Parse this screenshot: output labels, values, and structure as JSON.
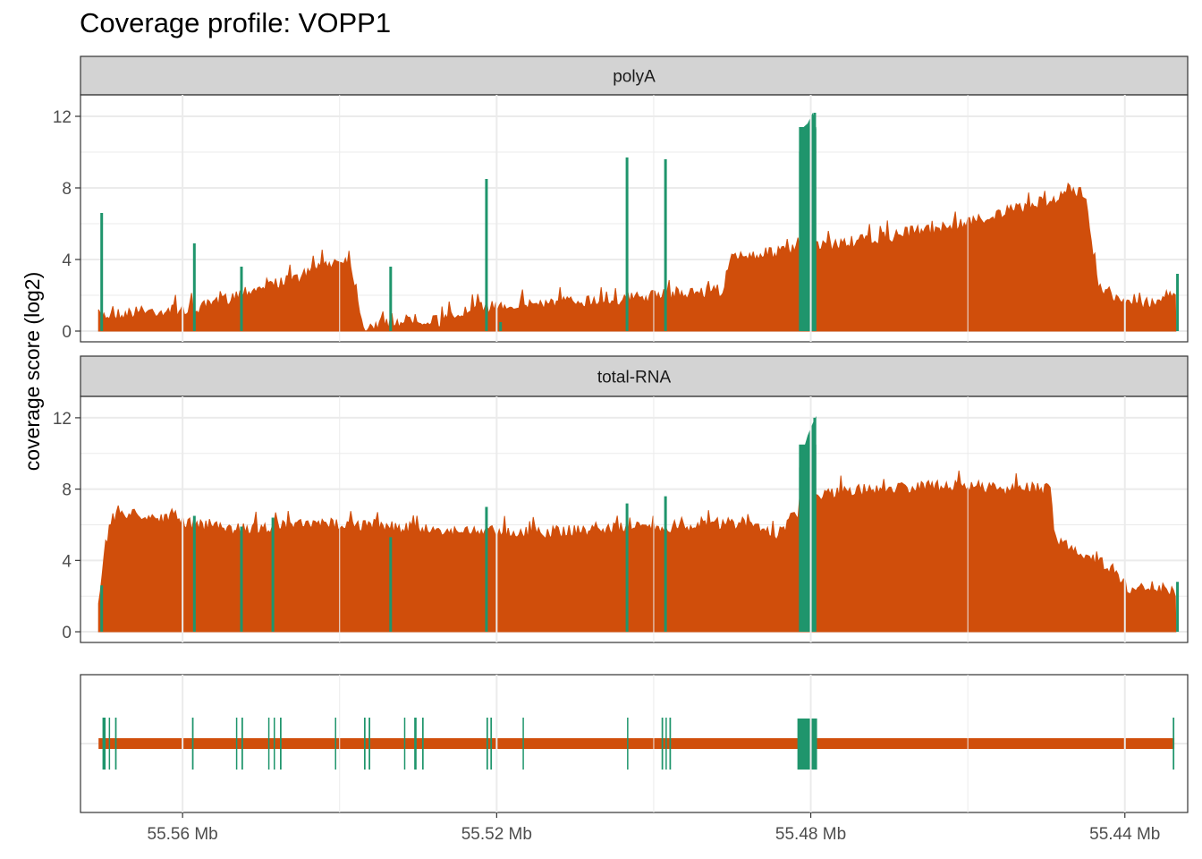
{
  "chart_data": {
    "type": "area",
    "title": "Coverage profile: VOPP1",
    "ylabel": "coverage score (log2)",
    "xlabel": "",
    "x_axis": {
      "reversed": true,
      "unit": "Mb",
      "xlim": [
        55.573,
        55.432
      ],
      "ticks": [
        55.56,
        55.52,
        55.48,
        55.44
      ],
      "tick_labels": [
        "55.56 Mb",
        "55.52 Mb",
        "55.48 Mb",
        "55.44 Mb"
      ]
    },
    "y_axis": {
      "ylim": [
        -0.6,
        13.2
      ],
      "ticks": [
        0,
        4,
        8,
        12
      ],
      "tick_labels": [
        "0",
        "4",
        "8",
        "12"
      ]
    },
    "grid": true,
    "colors": {
      "intron": "#d04e0b",
      "exon": "#1f956c",
      "strip": "#d3d3d3",
      "grid": "#ebebeb"
    },
    "series_colors_meaning": {
      "#1f956c": "exon",
      "#d04e0b": "intron"
    },
    "panels": [
      {
        "name": "polyA",
        "intron_profile": [
          [
            55.5707,
            1.2
          ],
          [
            55.566,
            1.4
          ],
          [
            55.562,
            1.5
          ],
          [
            55.558,
            1.6
          ],
          [
            55.555,
            2.0
          ],
          [
            55.552,
            2.6
          ],
          [
            55.549,
            2.9
          ],
          [
            55.546,
            3.2
          ],
          [
            55.543,
            3.8
          ],
          [
            55.541,
            4.2
          ],
          [
            55.539,
            4.4
          ],
          [
            55.538,
            3.0
          ],
          [
            55.537,
            0.6
          ],
          [
            55.534,
            0.8
          ],
          [
            55.53,
            1.0
          ],
          [
            55.527,
            0.9
          ],
          [
            55.525,
            1.3
          ],
          [
            55.522,
            1.6
          ],
          [
            55.519,
            1.8
          ],
          [
            55.515,
            1.9
          ],
          [
            55.51,
            2.0
          ],
          [
            55.505,
            2.1
          ],
          [
            55.5,
            2.3
          ],
          [
            55.495,
            2.5
          ],
          [
            55.491,
            2.6
          ],
          [
            55.49,
            4.5
          ],
          [
            55.485,
            4.7
          ],
          [
            55.48,
            5.0
          ],
          [
            55.475,
            5.3
          ],
          [
            55.47,
            5.6
          ],
          [
            55.467,
            5.9
          ],
          [
            55.464,
            6.0
          ],
          [
            55.46,
            6.4
          ],
          [
            55.455,
            7.0
          ],
          [
            55.45,
            7.6
          ],
          [
            55.447,
            8.0
          ],
          [
            55.445,
            8.1
          ],
          [
            55.4435,
            3.0
          ],
          [
            55.44,
            1.8
          ],
          [
            55.436,
            2.0
          ],
          [
            55.4335,
            2.6
          ]
        ],
        "exon_peaks": [
          [
            55.5703,
            6.6
          ],
          [
            55.5585,
            4.9
          ],
          [
            55.5525,
            3.6
          ],
          [
            55.5335,
            3.6
          ],
          [
            55.5195,
            0.5
          ],
          [
            55.5213,
            8.5
          ],
          [
            55.5034,
            9.7
          ],
          [
            55.4985,
            9.6
          ],
          [
            55.4795,
            12.2
          ],
          [
            55.4333,
            3.2
          ]
        ]
      },
      {
        "name": "total-RNA",
        "intron_profile": [
          [
            55.5707,
            2.0
          ],
          [
            55.57,
            4.8
          ],
          [
            55.569,
            6.6
          ],
          [
            55.568,
            7.0
          ],
          [
            55.565,
            6.9
          ],
          [
            55.561,
            6.6
          ],
          [
            55.558,
            6.3
          ],
          [
            55.554,
            6.1
          ],
          [
            55.55,
            6.2
          ],
          [
            55.546,
            6.3
          ],
          [
            55.54,
            6.4
          ],
          [
            55.535,
            6.3
          ],
          [
            55.53,
            6.1
          ],
          [
            55.525,
            6.0
          ],
          [
            55.52,
            6.0
          ],
          [
            55.515,
            5.9
          ],
          [
            55.51,
            6.0
          ],
          [
            55.505,
            6.1
          ],
          [
            55.5,
            6.2
          ],
          [
            55.495,
            6.3
          ],
          [
            55.49,
            6.4
          ],
          [
            55.487,
            6.3
          ],
          [
            55.484,
            5.8
          ],
          [
            55.48,
            7.9
          ],
          [
            55.476,
            8.2
          ],
          [
            55.47,
            8.4
          ],
          [
            55.465,
            8.5
          ],
          [
            55.459,
            8.5
          ],
          [
            55.455,
            8.3
          ],
          [
            55.452,
            8.4
          ],
          [
            55.4495,
            8.3
          ],
          [
            55.449,
            5.6
          ],
          [
            55.446,
            4.9
          ],
          [
            55.443,
            4.2
          ],
          [
            55.441,
            3.7
          ],
          [
            55.4395,
            2.6
          ],
          [
            55.437,
            3.0
          ],
          [
            55.435,
            2.7
          ],
          [
            55.4335,
            2.6
          ]
        ],
        "exon_peaks": [
          [
            55.5703,
            2.6
          ],
          [
            55.5585,
            6.5
          ],
          [
            55.5525,
            5.9
          ],
          [
            55.5485,
            6.4
          ],
          [
            55.5335,
            5.3
          ],
          [
            55.5213,
            7.0
          ],
          [
            55.5034,
            7.2
          ],
          [
            55.4985,
            7.6
          ],
          [
            55.4795,
            12.0
          ],
          [
            55.4333,
            2.8
          ]
        ]
      }
    ],
    "gene_model": {
      "intron_line": [
        55.5707,
        55.4337
      ],
      "exons": [
        [
          55.5702,
          55.5698
        ],
        [
          55.5694,
          55.5693
        ],
        [
          55.5686,
          55.5684
        ],
        [
          55.5588,
          55.5586
        ],
        [
          55.5532,
          55.5531
        ],
        [
          55.5525,
          55.5523
        ],
        [
          55.5491,
          55.549
        ],
        [
          55.5484,
          55.5483
        ],
        [
          55.5476,
          55.5474
        ],
        [
          55.5406,
          55.5405
        ],
        [
          55.5369,
          55.5367
        ],
        [
          55.5363,
          55.5361
        ],
        [
          55.5318,
          55.5317
        ],
        [
          55.5305,
          55.5302
        ],
        [
          55.5295,
          55.5293
        ],
        [
          55.5213,
          55.5211
        ],
        [
          55.5208,
          55.5206
        ],
        [
          55.5167,
          55.5166
        ],
        [
          55.5034,
          55.5033
        ],
        [
          55.499,
          55.4988
        ],
        [
          55.4985,
          55.4984
        ],
        [
          55.498,
          55.4978
        ],
        [
          55.4817,
          55.4792
        ],
        [
          55.4339,
          55.4337
        ]
      ]
    }
  }
}
